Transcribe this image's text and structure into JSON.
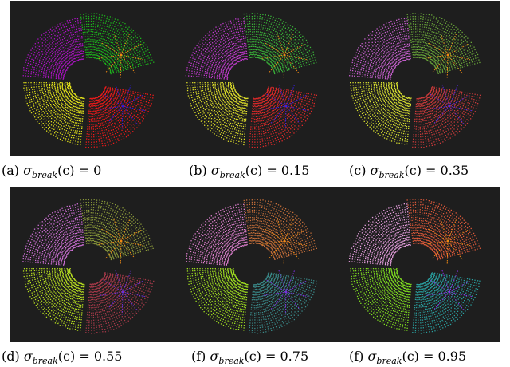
{
  "figures": [
    {
      "label": "(a)",
      "value": "0",
      "colors": {
        "sector_tl": "#b012c8",
        "sector_tr": "#1cb61c",
        "sector_bl": "#e3e31a",
        "sector_br": "#ee1a1a",
        "star_top": "#f08a14",
        "star_bottom": "#2a1ae0"
      }
    },
    {
      "label": "(b)",
      "value": "0.15",
      "colors": {
        "sector_tl": "#c23ad0",
        "sector_tr": "#3ab63a",
        "sector_bl": "#e0e02a",
        "sector_br": "#e02a2a",
        "star_top": "#f08a14",
        "star_bottom": "#3a20e0"
      }
    },
    {
      "label": "(c)",
      "value": "0.35",
      "colors": {
        "sector_tl": "#c860d0",
        "sector_tr": "#6aa83a",
        "sector_bl": "#d8e030",
        "sector_br": "#c83a3a",
        "star_top": "#f08a14",
        "star_bottom": "#5a28e0"
      }
    },
    {
      "label": "(d)",
      "value": "0.55",
      "colors": {
        "sector_tl": "#d070d8",
        "sector_tr": "#8a9a3a",
        "sector_bl": "#b8e020",
        "sector_br": "#a83a4a",
        "star_top": "#f08a14",
        "star_bottom": "#6a30e0"
      }
    },
    {
      "label": "(f)",
      "value": "0.75",
      "colors": {
        "sector_tl": "#e080d0",
        "sector_tr": "#c8703a",
        "sector_bl": "#a0e020",
        "sector_br": "#3a8a8a",
        "star_top": "#f08a14",
        "star_bottom": "#7a30e0"
      }
    },
    {
      "label": "(f)",
      "value": "0.95",
      "colors": {
        "sector_tl": "#e8a0e0",
        "sector_tr": "#e05a3a",
        "sector_bl": "#80e020",
        "sector_br": "#2aa0a0",
        "star_top": "#f08a14",
        "star_bottom": "#8a30e8"
      }
    }
  ],
  "caption_symbol": "σ",
  "caption_subscript": "break",
  "caption_argument": "(c) = "
}
